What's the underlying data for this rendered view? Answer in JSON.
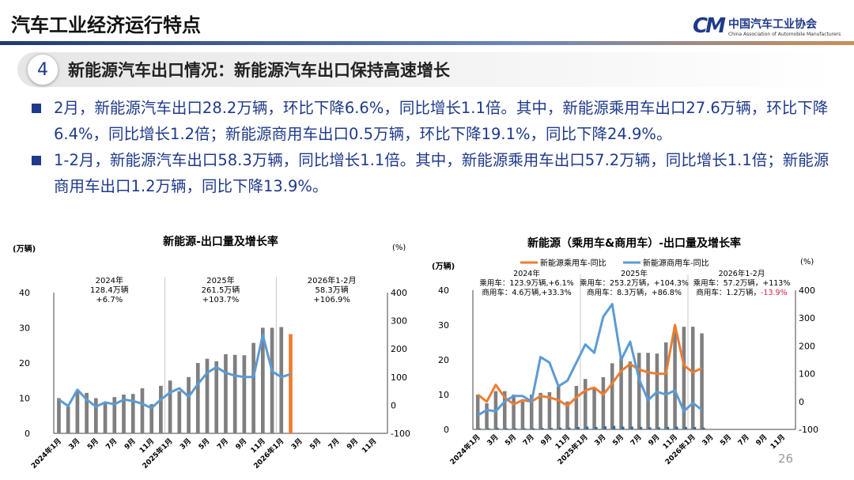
{
  "header": {
    "title": "汽车工业经济运行特点",
    "logo_cn": "中国汽车工业协会",
    "logo_en": "China Association of Automobile Manufacturers",
    "logo_mark": "CM"
  },
  "section": {
    "number": "4",
    "title": "新能源汽车出口情况：新能源汽车出口保持高速增长"
  },
  "bullets": [
    "2月，新能源汽车出口28.2万辆，环比下降6.6%，同比增长1.1倍。其中，新能源乘用车出口27.6万辆，环比下降6.4%，同比增长1.2倍；新能源商用车出口0.5万辆，环比下降19.1%，同比下降24.9%。",
    "1-2月，新能源汽车出口58.3万辆，同比增长1.1倍。其中，新能源乘用车出口57.2万辆，同比增长1.1倍；新能源商用车出口1.2万辆，同比下降13.9%。"
  ],
  "page_number": "26",
  "colors": {
    "accent": "#1f3a8a",
    "bar": "#7f7f7f",
    "highlight_bar": "#ed7d31",
    "line_blue": "#5b9bd5",
    "line_orange": "#ed7d31",
    "negative": "#e0203a"
  },
  "chart_data": [
    {
      "type": "bar+line",
      "title": "新能源-出口量及增长率",
      "ylabel": "(万辆)",
      "y2label": "(%)",
      "ylim": [
        0,
        40
      ],
      "y2lim": [
        -100,
        400
      ],
      "yticks": [
        "0",
        "10",
        "20",
        "30",
        "40"
      ],
      "y2ticks": [
        "-100",
        "0",
        "100",
        "200",
        "300",
        "400"
      ],
      "xticks": [
        "2024年1月",
        "3月",
        "5月",
        "7月",
        "9月",
        "11月",
        "2025年1月",
        "3月",
        "5月",
        "7月",
        "9月",
        "11月",
        "2026年1月",
        "3月",
        "5月",
        "7月",
        "9月",
        "11月"
      ],
      "annotations": [
        {
          "lines": [
            "2024年",
            "128.4万辆",
            "+6.7%"
          ]
        },
        {
          "lines": [
            "2025年",
            "261.5万辆",
            "+103.7%"
          ]
        },
        {
          "lines": [
            "2026年1-2月",
            "58.3万辆",
            "+106.9%"
          ]
        }
      ],
      "series": [
        {
          "kind": "bar",
          "values": [
            10,
            7.6,
            12,
            11.5,
            10,
            8.5,
            10.3,
            11,
            11.2,
            12.8,
            8.3,
            13.5,
            15,
            12,
            16,
            20,
            21.2,
            20.5,
            22.5,
            22.3,
            22.2,
            25.7,
            30,
            30,
            30.2,
            28.2
          ]
        },
        {
          "kind": "line",
          "values": [
            20,
            -3,
            55,
            20,
            -5,
            10,
            3,
            20,
            15,
            5,
            -10,
            20,
            45,
            60,
            30,
            75,
            115,
            135,
            115,
            105,
            100,
            100,
            250,
            120,
            100,
            110
          ]
        }
      ]
    },
    {
      "type": "bar+line",
      "title": "新能源（乘用车&商用车）-出口量及增长率",
      "ylabel": "(万辆)",
      "y2label": "(%)",
      "ylim": [
        0,
        40
      ],
      "y2lim": [
        -100,
        400
      ],
      "yticks": [
        "0",
        "10",
        "20",
        "30",
        "40"
      ],
      "y2ticks": [
        "-100",
        "0",
        "100",
        "200",
        "300",
        "400"
      ],
      "xticks": [
        "2024年1月",
        "3月",
        "5月",
        "7月",
        "9月",
        "11月",
        "2025年1月",
        "3月",
        "5月",
        "7月",
        "9月",
        "11月",
        "2026年1月",
        "3月",
        "5月",
        "7月",
        "9月",
        "11月"
      ],
      "annotations": [
        {
          "lines": [
            "2024年",
            "乘用车：123.9万辆,+6.1%",
            "商用车：4.6万辆,+33.3%"
          ]
        },
        {
          "lines": [
            "2025年",
            "乘用车：253.2万辆，+104.3%",
            "商用车：8.3万辆，+86.8%"
          ]
        },
        {
          "lines": [
            "2026年1-2月",
            "乘用车：57.2万辆，+113%",
            "商用车：1.2万辆，"
          ],
          "negative": "-13.9%"
        }
      ],
      "series": [
        {
          "kind": "bar",
          "values": [
            10,
            7.5,
            11,
            11,
            10,
            8,
            10,
            10.5,
            10.7,
            12.3,
            8,
            12.5,
            14.5,
            12,
            15,
            19,
            20.5,
            19.5,
            22,
            22,
            21.8,
            25,
            29.5,
            29.5,
            29.5,
            27.6
          ]
        },
        {
          "kind": "bar2",
          "values": [
            0.3,
            0.3,
            0.4,
            0.3,
            0.3,
            0.3,
            0.3,
            0.4,
            0.4,
            0.5,
            0.5,
            0.7,
            0.8,
            0.7,
            0.9,
            1,
            0.8,
            0.8,
            0.7,
            0.6,
            0.6,
            0.7,
            0.8,
            0.7,
            0.7,
            0.5
          ]
        },
        {
          "kind": "line",
          "name": "新能源乘用车-同比",
          "color": "#ed7d31",
          "values": [
            25,
            0,
            60,
            15,
            -10,
            5,
            0,
            20,
            15,
            5,
            -15,
            15,
            40,
            50,
            25,
            65,
            110,
            135,
            115,
            105,
            100,
            100,
            275,
            130,
            105,
            120
          ]
        },
        {
          "kind": "line",
          "name": "新能源商用车-同比",
          "color": "#5b9bd5",
          "values": [
            -50,
            -30,
            -35,
            0,
            20,
            20,
            0,
            160,
            140,
            55,
            75,
            140,
            205,
            175,
            305,
            350,
            150,
            215,
            80,
            5,
            35,
            25,
            40,
            -35,
            -5,
            -30
          ]
        }
      ]
    }
  ]
}
